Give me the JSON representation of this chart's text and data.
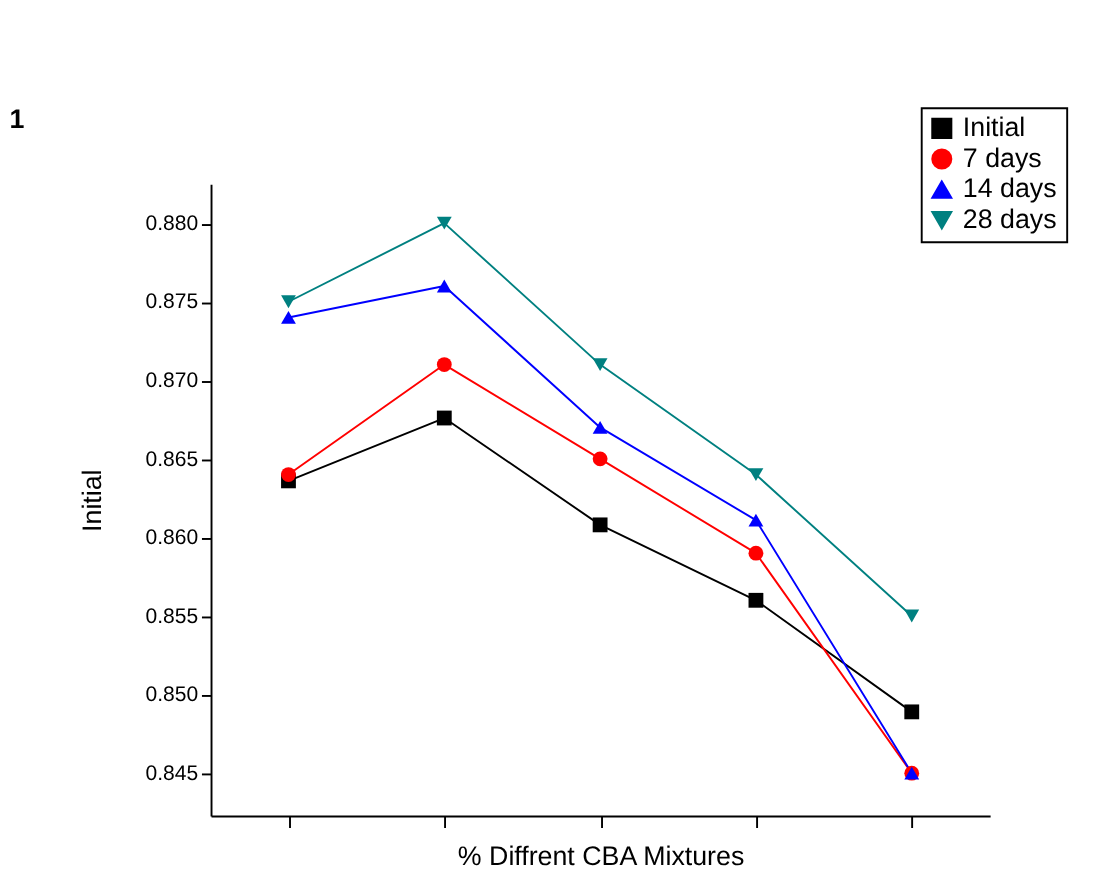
{
  "chart_data": {
    "type": "line",
    "xlabel": "% Diffrent CBA Mixtures",
    "ylabel": "Initial",
    "annotations": [
      "1"
    ],
    "categories": [
      null,
      null,
      null,
      null,
      null
    ],
    "series": [
      {
        "name": "Initial",
        "color": "#000000",
        "marker": "square",
        "values": [
          0.8636,
          0.8676,
          0.8608,
          0.856,
          0.8489
        ]
      },
      {
        "name": "7 days",
        "color": "#ff0000",
        "marker": "circle",
        "values": [
          0.864,
          0.871,
          0.865,
          0.859,
          0.845
        ]
      },
      {
        "name": "14 days",
        "color": "#0000ff",
        "marker": "triangle",
        "values": [
          0.874,
          0.876,
          0.867,
          0.8611,
          0.845
        ]
      },
      {
        "name": "28 days",
        "color": "#008080",
        "marker": "triangle-down",
        "values": [
          0.875,
          0.88,
          0.871,
          0.864,
          0.855
        ]
      }
    ],
    "ylim": [
      0.8423,
      0.8825
    ],
    "yticks": [
      0.845,
      {
        "value": 0.85,
        "label": "0.850"
      },
      0.855,
      {
        "value": 0.86,
        "label": "0.860"
      },
      0.865,
      {
        "value": 0.87,
        "label": "0.870"
      },
      0.875,
      {
        "value": 0.88,
        "label": "0.880"
      }
    ],
    "grid": false,
    "legend": "top right",
    "line_style": "solid"
  }
}
